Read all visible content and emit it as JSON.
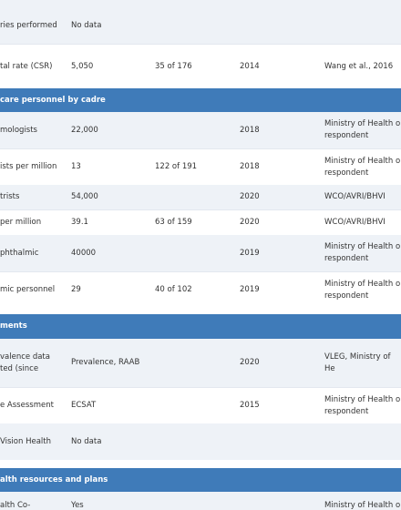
{
  "table": {
    "rows": [
      {
        "label": "ries performed",
        "value": "No data"
      },
      {
        "label": "tal rate (CSR)",
        "value": "5,050",
        "rank": "35 of 176",
        "year": "2014",
        "source": "Wang et al., 2016"
      },
      {
        "section": "care personnel by cadre"
      },
      {
        "label": "mologists",
        "value": "22,000",
        "year": "2018",
        "source": "Ministry of Health o\nrespondent"
      },
      {
        "label": "ists per million",
        "value": "13",
        "rank": "122 of 191",
        "year": "2018",
        "source": "Ministry of Health o\nrespondent"
      },
      {
        "label": "trists",
        "value": "54,000",
        "year": "2020",
        "source": "WCO/AVRI/BHVI"
      },
      {
        "label": "per million",
        "value": "39.1",
        "rank": "63 of 159",
        "year": "2020",
        "source": "WCO/AVRI/BHVI"
      },
      {
        "label": "phthalmic",
        "value": "40000",
        "year": "2019",
        "source": "Ministry of Health o\nrespondent"
      },
      {
        "label": "mic personnel",
        "value": "29",
        "rank": "40 of 102",
        "year": "2019",
        "source": "Ministry of Health o\nrespondent"
      },
      {
        "section": "ments"
      },
      {
        "label": "valence data\nted (since",
        "value": "Prevalence, RAAB",
        "year": "2020",
        "source": "VLEG, Ministry of He"
      },
      {
        "label": "e Assessment",
        "value": "ECSAT",
        "year": "2015",
        "source": "Ministry of Health o\nrespondent"
      },
      {
        "label": "Vision Health",
        "value": "No data"
      },
      {
        "section": "alth resources and plans"
      },
      {
        "label": "alth Co-",
        "value": "Yes",
        "source": "Ministry of Health o"
      }
    ]
  }
}
